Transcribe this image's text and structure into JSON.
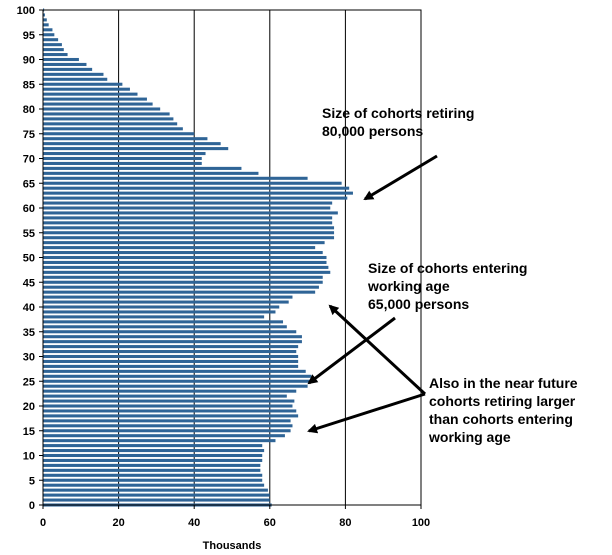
{
  "chart_data": {
    "type": "bar",
    "orientation": "horizontal",
    "xlabel": "Thousands",
    "xlim": [
      0,
      100
    ],
    "xticks": [
      0,
      20,
      40,
      60,
      80,
      100
    ],
    "ylim": [
      0,
      100
    ],
    "yticks": [
      0,
      5,
      10,
      15,
      20,
      25,
      30,
      35,
      40,
      45,
      50,
      55,
      60,
      65,
      70,
      75,
      80,
      85,
      90,
      95,
      100
    ],
    "grid": "vertical",
    "bar_color": "#2f6496",
    "categories": [
      0,
      1,
      2,
      3,
      4,
      5,
      6,
      7,
      8,
      9,
      10,
      11,
      12,
      13,
      14,
      15,
      16,
      17,
      18,
      19,
      20,
      21,
      22,
      23,
      24,
      25,
      26,
      27,
      28,
      29,
      30,
      31,
      32,
      33,
      34,
      35,
      36,
      37,
      38,
      39,
      40,
      41,
      42,
      43,
      44,
      45,
      46,
      47,
      48,
      49,
      50,
      51,
      52,
      53,
      54,
      55,
      56,
      57,
      58,
      59,
      60,
      61,
      62,
      63,
      64,
      65,
      66,
      67,
      68,
      69,
      70,
      71,
      72,
      73,
      74,
      75,
      76,
      77,
      78,
      79,
      80,
      81,
      82,
      83,
      84,
      85,
      86,
      87,
      88,
      89,
      90,
      91,
      92,
      93,
      94,
      95,
      96,
      97,
      98,
      99,
      100
    ],
    "values": [
      60.5,
      60,
      60,
      59.5,
      58.5,
      58,
      58,
      57.5,
      57.5,
      58,
      58,
      58.5,
      58,
      61.5,
      64,
      65.5,
      66,
      65.5,
      67.5,
      67,
      66,
      66.5,
      64.5,
      67,
      70,
      71,
      71,
      69.5,
      67.5,
      67.5,
      67.5,
      67,
      67.5,
      68.5,
      68.5,
      67,
      64.5,
      63.5,
      58.5,
      61.5,
      62.5,
      65,
      66,
      72,
      73,
      74,
      74,
      76,
      75.5,
      75,
      75,
      74,
      72,
      74.5,
      77,
      77,
      77,
      76.5,
      76.5,
      78,
      76,
      76.5,
      80.5,
      82,
      81,
      79,
      70,
      57,
      52.5,
      42,
      42,
      43,
      49,
      47,
      43.5,
      40,
      37,
      35.5,
      34.5,
      33.5,
      31,
      29,
      27.5,
      25,
      23,
      21,
      17,
      16,
      13,
      11.5,
      9.5,
      6.5,
      5.5,
      5,
      4,
      3,
      2.5,
      1.5,
      1,
      0.5,
      0.3
    ],
    "annotations": [
      {
        "lines": [
          "Size of cohorts retiring",
          "80,000 persons"
        ]
      },
      {
        "lines": [
          "Size of cohorts entering",
          "working age",
          "65,000 persons"
        ]
      },
      {
        "lines": [
          "Also in the near future",
          "cohorts retiring larger",
          "than cohorts entering",
          "working age"
        ]
      }
    ]
  },
  "colors": {
    "bar": "#2f6496",
    "grid": "#000000",
    "arrow": "#000000"
  }
}
